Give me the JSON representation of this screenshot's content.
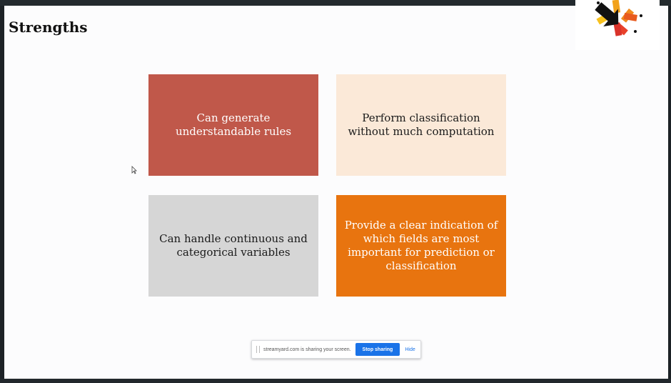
{
  "slide": {
    "title": "Strengths",
    "cards": [
      {
        "text": "Can generate understandable rules",
        "color": "#c0584a"
      },
      {
        "text": "Perform classification without much computation",
        "color": "#fbe9d8"
      },
      {
        "text": "Can handle continuous and categorical variables",
        "color": "#d6d6d6"
      },
      {
        "text": "Provide a clear indication of which fields are most important for prediction or classification",
        "color": "#e8740f"
      }
    ]
  },
  "logo": {
    "icon": "starburst-arrow-logo-icon"
  },
  "share_bar": {
    "message": "streamyard.com is sharing your screen.",
    "stop_label": "Stop sharing",
    "hide_label": "Hide"
  }
}
